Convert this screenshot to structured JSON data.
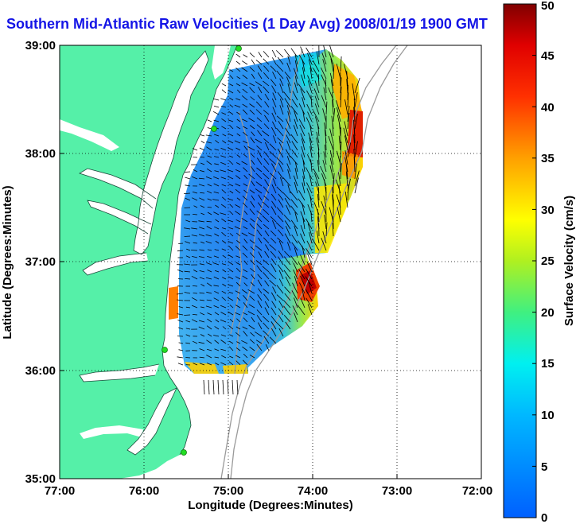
{
  "title": "Southern Mid-Atlantic Raw Velocities (1 Day Avg) 2008/01/19 1900 GMT",
  "x_axis": {
    "label": "Longitude (Degrees:Minutes)",
    "ticks": [
      "77:00",
      "76:00",
      "75:00",
      "74:00",
      "73:00",
      "72:00"
    ]
  },
  "y_axis": {
    "label": "Latitude (Degrees:Minutes)",
    "ticks": [
      "39:00",
      "38:00",
      "37:00",
      "36:00",
      "35:00"
    ]
  },
  "colorbar": {
    "label": "Surface Velocity (cm/s)",
    "ticks": [
      "50",
      "45",
      "40",
      "35",
      "30",
      "25",
      "20",
      "15",
      "10",
      "5",
      "0"
    ],
    "range": [
      0,
      50
    ]
  },
  "colors": {
    "land": "#55f0a8",
    "water": "#ffffff",
    "title": "#1414e6",
    "station": "#22dd22"
  }
}
